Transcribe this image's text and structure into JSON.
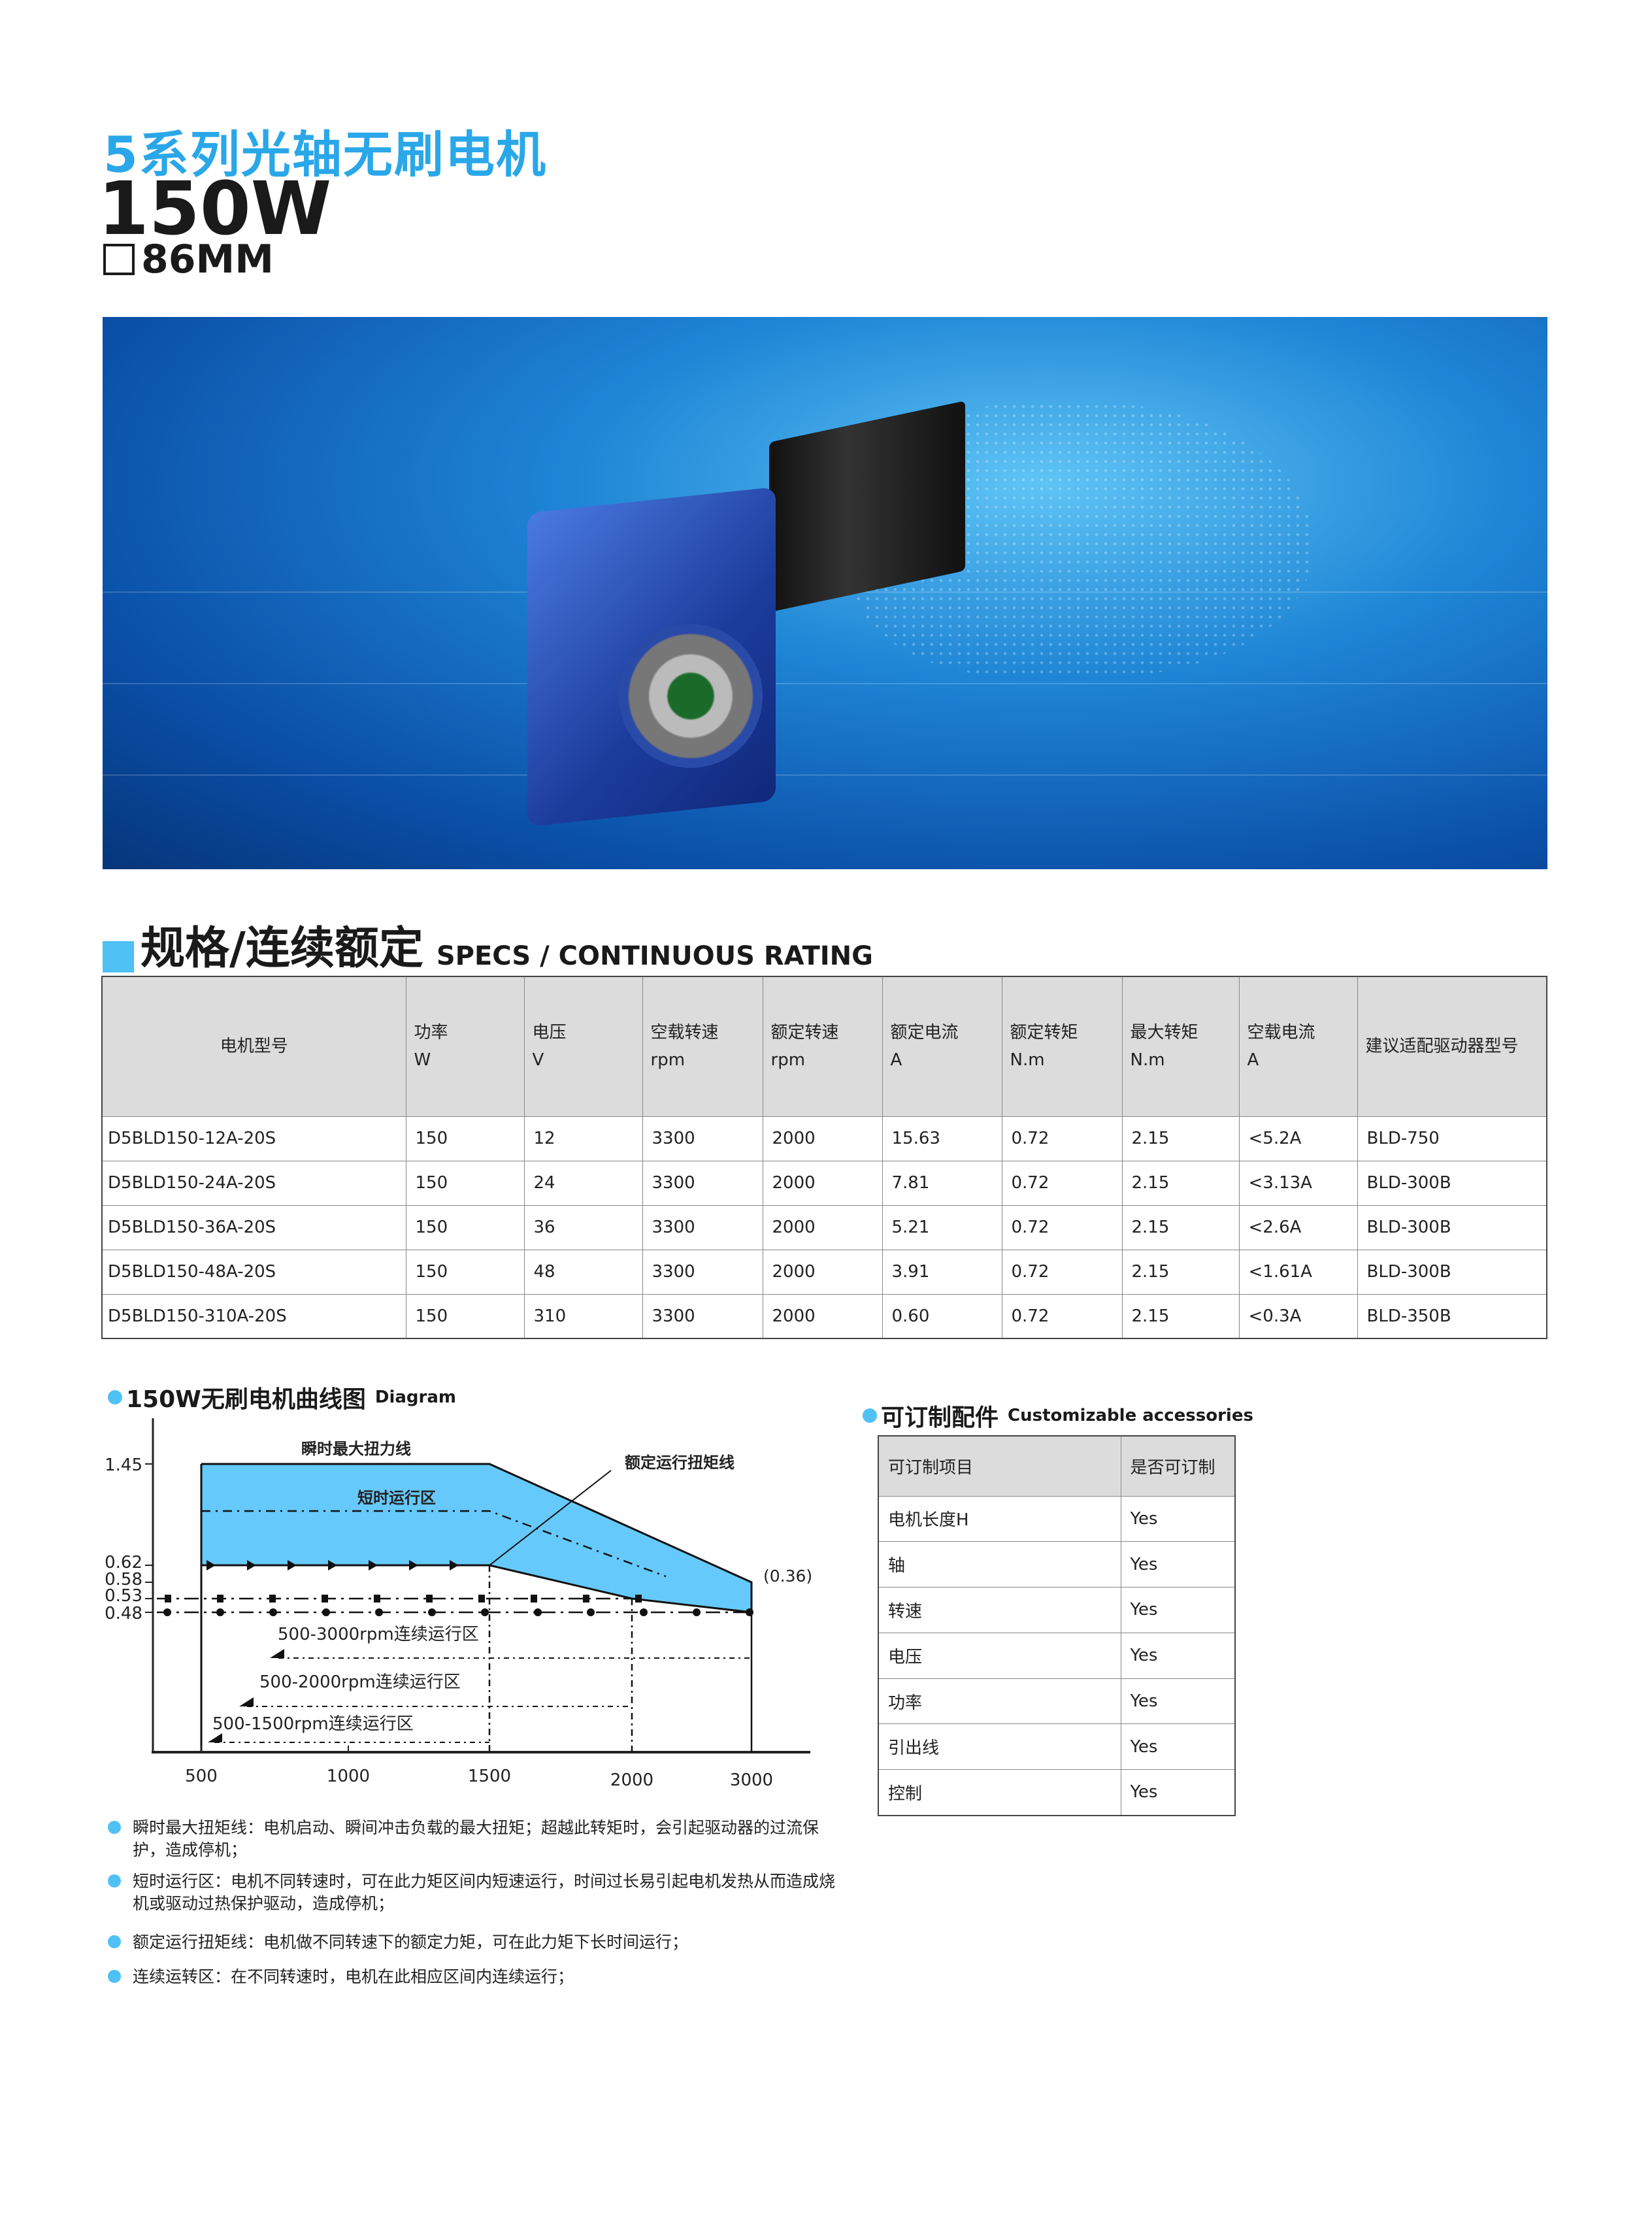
{
  "header": {
    "series_title": "5系列光轴无刷电机",
    "power": "150W",
    "frame_size": "86MM"
  },
  "banner": {
    "image": "worm-gearbox-brushless-motor-photo",
    "colors": {
      "bg": "#1f86d6"
    }
  },
  "specs": {
    "title_cn": "规格/连续额定",
    "title_en": "SPECS / CONTINUOUS RATING",
    "headers": [
      [
        "电机型号",
        ""
      ],
      [
        "功率",
        "W"
      ],
      [
        "电压",
        "V"
      ],
      [
        "空载转速",
        "rpm"
      ],
      [
        "额定转速",
        "rpm"
      ],
      [
        "额定电流",
        "A"
      ],
      [
        "额定转矩",
        "N.m"
      ],
      [
        "最大转矩",
        "N.m"
      ],
      [
        "空载电流",
        "A"
      ],
      [
        "建议适配驱动器型号",
        ""
      ]
    ],
    "rows": [
      [
        "D5BLD150-12A-20S",
        "150",
        "12",
        "3300",
        "2000",
        "15.63",
        "0.72",
        "2.15",
        "<5.2A",
        "BLD-750"
      ],
      [
        "D5BLD150-24A-20S",
        "150",
        "24",
        "3300",
        "2000",
        "7.81",
        "0.72",
        "2.15",
        "<3.13A",
        "BLD-300B"
      ],
      [
        "D5BLD150-36A-20S",
        "150",
        "36",
        "3300",
        "2000",
        "5.21",
        "0.72",
        "2.15",
        "<2.6A",
        "BLD-300B"
      ],
      [
        "D5BLD150-48A-20S",
        "150",
        "48",
        "3300",
        "2000",
        "3.91",
        "0.72",
        "2.15",
        "<1.61A",
        "BLD-300B"
      ],
      [
        "D5BLD150-310A-20S",
        "150",
        "310",
        "3300",
        "2000",
        "0.60",
        "0.72",
        "2.15",
        "<0.3A",
        "BLD-350B"
      ]
    ]
  },
  "diagram": {
    "title_cn": "150W无刷电机曲线图",
    "title_en": "Diagram"
  },
  "chart_data": {
    "type": "area",
    "title": "150W无刷电机曲线图 Diagram",
    "x_ticks": [
      500,
      1000,
      1500,
      2000,
      3000
    ],
    "y_ticks": [
      1.45,
      0.62,
      0.58,
      0.53,
      0.48
    ],
    "series": [
      {
        "name": "瞬时最大扭力线",
        "points": [
          [
            500,
            1.45
          ],
          [
            1500,
            1.45
          ],
          [
            3000,
            0.58
          ]
        ]
      },
      {
        "name": "额定运行扭矩线",
        "points": [
          [
            500,
            0.62
          ],
          [
            1500,
            0.62
          ],
          [
            2000,
            0.53
          ],
          [
            3000,
            0.48
          ]
        ]
      }
    ],
    "regions": [
      {
        "name": "短时运行区"
      },
      {
        "name": "500-3000rpm连续运行区"
      },
      {
        "name": "500-2000rpm连续运行区"
      },
      {
        "name": "500-1500rpm连续运行区"
      }
    ],
    "annotations": [
      "(0.36)"
    ],
    "colors": {
      "fill": "#66c9fb",
      "line": "#111111"
    }
  },
  "accessories": {
    "title_cn": "可订制配件",
    "title_en": "Customizable accessories",
    "headers": [
      "可订制项目",
      "是否可订制"
    ],
    "rows": [
      [
        "电机长度H",
        "Yes"
      ],
      [
        "轴",
        "Yes"
      ],
      [
        "转速",
        "Yes"
      ],
      [
        "电压",
        "Yes"
      ],
      [
        "功率",
        "Yes"
      ],
      [
        "引出线",
        "Yes"
      ],
      [
        "控制",
        "Yes"
      ]
    ]
  },
  "notes": [
    "瞬时最大扭矩线：电机启动、瞬间冲击负载的最大扭矩；超越此转矩时，会引起驱动器的过流保护，造成停机；",
    "短时运行区：电机不同转速时，可在此力矩区间内短速运行，时间过长易引起电机发热从而造成烧机或驱动过热保护驱动，造成停机；",
    "额定运行扭矩线：电机做不同转速下的额定力矩，可在此力矩下长时间运行；",
    "连续运转区：在不同转速时，电机在此相应区间内连续运行；"
  ]
}
